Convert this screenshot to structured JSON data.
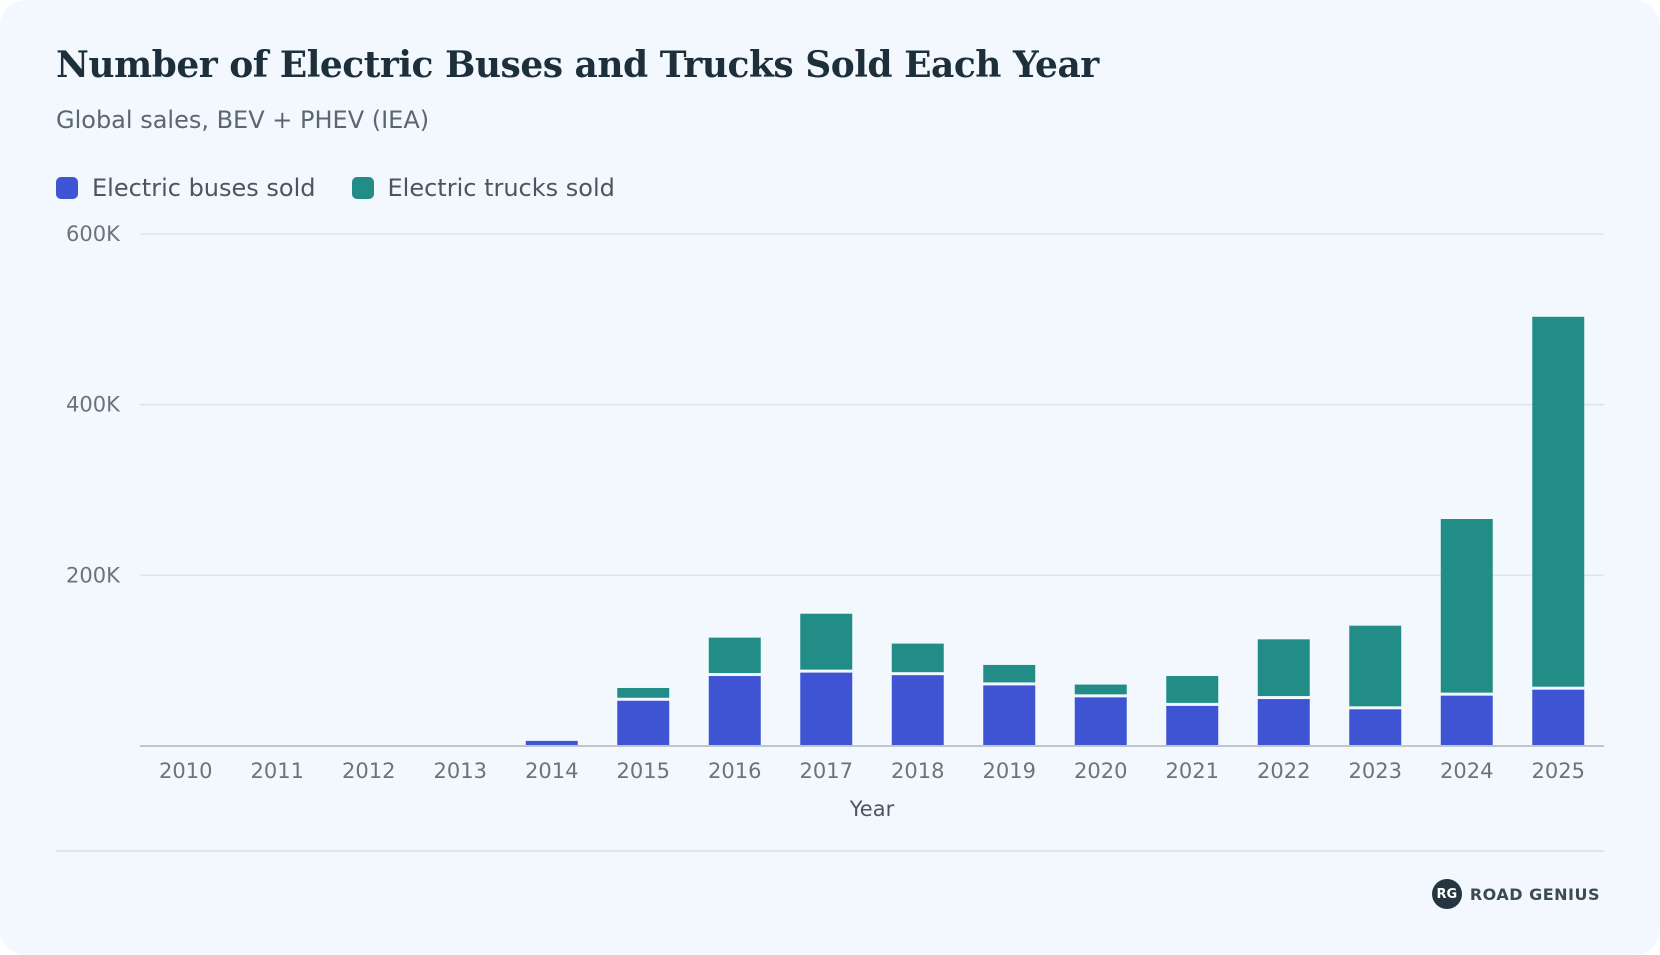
{
  "colors": {
    "buses": "#3f54d3",
    "trucks": "#218d86",
    "grid": "#dfe4e8",
    "axis": "#aeb5bb",
    "background": "#f3f8fe"
  },
  "brand": {
    "badge": "RG",
    "name": "ROAD GENIUS"
  },
  "chart_data": {
    "type": "bar",
    "stacked": true,
    "title": "Number of Electric Buses and Trucks Sold Each Year",
    "subtitle": "Global sales, BEV + PHEV (IEA)",
    "xlabel": "Year",
    "ylabel": "",
    "ylim": [
      0,
      600000
    ],
    "yticks": [
      {
        "value": 200000,
        "label": "200K"
      },
      {
        "value": 400000,
        "label": "400K"
      },
      {
        "value": 600000,
        "label": "600K"
      }
    ],
    "grid": true,
    "legend_position": "top-left",
    "categories": [
      "2010",
      "2011",
      "2012",
      "2013",
      "2014",
      "2015",
      "2016",
      "2017",
      "2018",
      "2019",
      "2020",
      "2021",
      "2022",
      "2023",
      "2024",
      "2025"
    ],
    "series": [
      {
        "name": "Electric buses sold",
        "color": "#3f54d3",
        "values": [
          0,
          0,
          0,
          0,
          6000,
          53000,
          82000,
          86000,
          83000,
          71000,
          57000,
          47000,
          55000,
          43000,
          59000,
          66000
        ]
      },
      {
        "name": "Electric trucks sold",
        "color": "#218d86",
        "values": [
          0,
          0,
          0,
          0,
          0,
          15000,
          45000,
          69000,
          37000,
          24000,
          15000,
          35000,
          70000,
          98000,
          207000,
          437000
        ]
      }
    ]
  }
}
